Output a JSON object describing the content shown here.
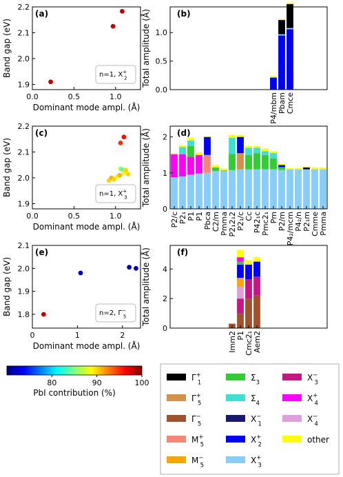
{
  "legend_order": [
    "G1p",
    "G5p",
    "G5m",
    "M5p",
    "M5m",
    "S3",
    "S4",
    "X1m",
    "X2p",
    "X3p",
    "X3m",
    "X4p",
    "X4m",
    "other"
  ],
  "modes": {
    "G1p": {
      "base": "Γ",
      "sup": "+",
      "sub": "1",
      "color": "#000000"
    },
    "G5p": {
      "base": "Γ",
      "sup": "+",
      "sub": "5",
      "color": "#d4914a"
    },
    "G5m": {
      "base": "Γ",
      "sup": "−",
      "sub": "5",
      "color": "#a0522d"
    },
    "M5p": {
      "base": "M",
      "sup": "+",
      "sub": "5",
      "color": "#f4877a"
    },
    "M5m": {
      "base": "M",
      "sup": "−",
      "sub": "5",
      "color": "#ffa500"
    },
    "S3": {
      "base": "Σ",
      "sup": "",
      "sub": "3",
      "color": "#32cd32"
    },
    "S4": {
      "base": "Σ",
      "sup": "",
      "sub": "4",
      "color": "#40e0d0"
    },
    "X1m": {
      "base": "X",
      "sup": "−",
      "sub": "1",
      "color": "#191970"
    },
    "X2p": {
      "base": "X",
      "sup": "+",
      "sub": "2",
      "color": "#0000ff"
    },
    "X3p": {
      "base": "X",
      "sup": "+",
      "sub": "3",
      "color": "#87cefa"
    },
    "X3m": {
      "base": "X",
      "sup": "−",
      "sub": "3",
      "color": "#c71585"
    },
    "X4p": {
      "base": "X",
      "sup": "+",
      "sub": "4",
      "color": "#ff00ff"
    },
    "X4m": {
      "base": "X",
      "sup": "−",
      "sub": "4",
      "color": "#dda0dd"
    },
    "other": {
      "base": "other",
      "sup": "",
      "sub": "",
      "color": "#ffff00"
    }
  },
  "colorbar": {
    "label": "PbI contribution (%)",
    "min": 70,
    "max": 100,
    "ticks": [
      80,
      90,
      100
    ],
    "colormap": [
      "#00007f",
      "#0000ff",
      "#007fff",
      "#00ffff",
      "#7fff7f",
      "#ffff00",
      "#ff7f00",
      "#ff0000",
      "#7f0000"
    ]
  },
  "chart_data": [
    {
      "panel": "(a)",
      "type": "scatter",
      "xlabel": "Dominant mode ampl. (Å)",
      "ylabel": "Band gap (eV)",
      "xlim": [
        0,
        1.3
      ],
      "ylim": [
        1.88,
        2.2
      ],
      "xticks": [
        0.0,
        0.5,
        1.0
      ],
      "yticks": [
        1.9,
        2.0,
        2.1,
        2.2
      ],
      "annotation": {
        "text": "n=1, X",
        "sup": "+",
        "sub": "2"
      },
      "points": [
        {
          "x": 0.22,
          "y": 1.91,
          "pbi": 98
        },
        {
          "x": 0.97,
          "y": 2.125,
          "pbi": 98
        },
        {
          "x": 1.08,
          "y": 2.183,
          "pbi": 98
        }
      ]
    },
    {
      "panel": "(b)",
      "type": "bar",
      "stacked": true,
      "ylabel": "Total amplitude (Å)",
      "ylim": [
        0,
        1.45
      ],
      "yticks": [
        0.0,
        0.5,
        1.0
      ],
      "slots": 19,
      "first_slot": 12,
      "categories": [
        "P4/mbm",
        "Pbam",
        "Cmce"
      ],
      "bars": [
        [
          {
            "mode": "X2p",
            "value": 0.21
          },
          {
            "mode": "X3p",
            "value": 0.01
          },
          {
            "mode": "other",
            "value": 0.02
          }
        ],
        [
          {
            "mode": "X2p",
            "value": 0.95
          },
          {
            "mode": "X3p",
            "value": 0.02
          },
          {
            "mode": "G1p",
            "value": 0.25
          },
          {
            "mode": "other",
            "value": 0.02
          }
        ],
        [
          {
            "mode": "X2p",
            "value": 1.06
          },
          {
            "mode": "X3p",
            "value": 0.02
          },
          {
            "mode": "G1p",
            "value": 0.42
          },
          {
            "mode": "other",
            "value": 0.02
          }
        ]
      ]
    },
    {
      "panel": "(c)",
      "type": "scatter",
      "xlabel": "Dominant mode ampl. (Å)",
      "ylabel": "Band gap (eV)",
      "xlim": [
        0,
        1.3
      ],
      "ylim": [
        1.88,
        2.2
      ],
      "xticks": [
        0.0,
        0.5,
        1.0
      ],
      "yticks": [
        1.9,
        2.0,
        2.1,
        2.2
      ],
      "annotation": {
        "text": "n=1, X",
        "sup": "+",
        "sub": "3"
      },
      "points": [
        {
          "x": 0.92,
          "y": 1.99,
          "pbi": 90
        },
        {
          "x": 0.95,
          "y": 2.0,
          "pbi": 91
        },
        {
          "x": 0.98,
          "y": 1.995,
          "pbi": 90
        },
        {
          "x": 1.02,
          "y": 2.005,
          "pbi": 89
        },
        {
          "x": 1.05,
          "y": 2.01,
          "pbi": 91
        },
        {
          "x": 1.06,
          "y": 2.035,
          "pbi": 86
        },
        {
          "x": 1.08,
          "y": 2.032,
          "pbi": 84
        },
        {
          "x": 1.1,
          "y": 2.02,
          "pbi": 89
        },
        {
          "x": 1.12,
          "y": 2.03,
          "pbi": 90
        },
        {
          "x": 1.15,
          "y": 2.015,
          "pbi": 90
        },
        {
          "x": 1.06,
          "y": 2.135,
          "pbi": 95
        },
        {
          "x": 1.1,
          "y": 2.158,
          "pbi": 96
        }
      ]
    },
    {
      "panel": "(d)",
      "type": "bar",
      "stacked": true,
      "ylabel": "Total amplitude (Å)",
      "ylim": [
        0,
        2.3
      ],
      "yticks": [
        0,
        1,
        2
      ],
      "slots": 19,
      "first_slot": 0,
      "categories": [
        "P2/c",
        "P2₁",
        "P1",
        "P1",
        "Pbca",
        "C2/m",
        "Pmma",
        "P2₁2₁2",
        "P2₁/c",
        "Cc",
        "P42₁c",
        "Pmc2₁",
        "Pm",
        "P2/m",
        "P4₂/mcm",
        "P4₂/n",
        "P2₁m",
        "Cmme",
        "Pmma"
      ],
      "bars": [
        [
          {
            "mode": "X3p",
            "value": 0.88
          },
          {
            "mode": "X4p",
            "value": 0.64
          },
          {
            "mode": "other",
            "value": 0.02
          }
        ],
        [
          {
            "mode": "X3p",
            "value": 0.9
          },
          {
            "mode": "X4p",
            "value": 0.62
          },
          {
            "mode": "S4",
            "value": 0.2
          },
          {
            "mode": "other",
            "value": 0.05
          }
        ],
        [
          {
            "mode": "X3p",
            "value": 0.95
          },
          {
            "mode": "X4p",
            "value": 0.5
          },
          {
            "mode": "S3",
            "value": 0.3
          },
          {
            "mode": "S4",
            "value": 0.15
          },
          {
            "mode": "other",
            "value": 0.08
          }
        ],
        [
          {
            "mode": "X3p",
            "value": 0.98
          },
          {
            "mode": "X4p",
            "value": 0.52
          },
          {
            "mode": "other",
            "value": 0.07
          }
        ],
        [
          {
            "mode": "X3p",
            "value": 1.0
          },
          {
            "mode": "M5p",
            "value": 0.5
          },
          {
            "mode": "X2p",
            "value": 0.5
          },
          {
            "mode": "other",
            "value": 0.02
          }
        ],
        [
          {
            "mode": "X3p",
            "value": 1.05
          },
          {
            "mode": "S3",
            "value": 0.1
          },
          {
            "mode": "other",
            "value": 0.07
          }
        ],
        [
          {
            "mode": "X3p",
            "value": 1.05
          },
          {
            "mode": "S3",
            "value": 0.02
          },
          {
            "mode": "other",
            "value": 0.05
          }
        ],
        [
          {
            "mode": "X3p",
            "value": 1.08
          },
          {
            "mode": "S3",
            "value": 0.45
          },
          {
            "mode": "S4",
            "value": 0.45
          },
          {
            "mode": "other",
            "value": 0.08
          }
        ],
        [
          {
            "mode": "X3p",
            "value": 1.1
          },
          {
            "mode": "G5p",
            "value": 0.45
          },
          {
            "mode": "X2p",
            "value": 0.45
          },
          {
            "mode": "other",
            "value": 0.05
          }
        ],
        [
          {
            "mode": "X3p",
            "value": 1.1
          },
          {
            "mode": "S3",
            "value": 0.4
          },
          {
            "mode": "S4",
            "value": 0.2
          },
          {
            "mode": "other",
            "value": 0.05
          }
        ],
        [
          {
            "mode": "X3p",
            "value": 1.1
          },
          {
            "mode": "S3",
            "value": 0.45
          },
          {
            "mode": "S4",
            "value": 0.15
          },
          {
            "mode": "other",
            "value": 0.05
          }
        ],
        [
          {
            "mode": "X3p",
            "value": 1.1
          },
          {
            "mode": "S3",
            "value": 0.4
          },
          {
            "mode": "S4",
            "value": 0.1
          },
          {
            "mode": "other",
            "value": 0.08
          }
        ],
        [
          {
            "mode": "X3p",
            "value": 1.1
          },
          {
            "mode": "S3",
            "value": 0.3
          },
          {
            "mode": "S4",
            "value": 0.15
          },
          {
            "mode": "other",
            "value": 0.05
          }
        ],
        [
          {
            "mode": "X3p",
            "value": 1.08
          },
          {
            "mode": "S3",
            "value": 0.08
          },
          {
            "mode": "X2p",
            "value": 0.06
          },
          {
            "mode": "other",
            "value": 0.03
          }
        ],
        [
          {
            "mode": "X3p",
            "value": 1.1
          },
          {
            "mode": "other",
            "value": 0.03
          }
        ],
        [
          {
            "mode": "X3p",
            "value": 1.1
          },
          {
            "mode": "other",
            "value": 0.03
          }
        ],
        [
          {
            "mode": "X3p",
            "value": 1.1
          },
          {
            "mode": "G1p",
            "value": 0.05
          },
          {
            "mode": "other",
            "value": 0.03
          }
        ],
        [
          {
            "mode": "X3p",
            "value": 1.1
          },
          {
            "mode": "other",
            "value": 0.05
          }
        ],
        [
          {
            "mode": "X3p",
            "value": 1.1
          },
          {
            "mode": "other",
            "value": 0.05
          }
        ]
      ]
    },
    {
      "panel": "(e)",
      "type": "scatter",
      "xlabel": "Dominant mode ampl. (Å)",
      "ylabel": "Band gap (eV)",
      "xlim": [
        0,
        2.4
      ],
      "ylim": [
        1.74,
        2.1
      ],
      "xticks": [
        0,
        1,
        2
      ],
      "yticks": [
        1.8,
        1.9,
        2.0,
        2.1
      ],
      "annotation": {
        "text": "n=2, Γ",
        "sup": "−",
        "sub": "5"
      },
      "points": [
        {
          "x": 0.25,
          "y": 1.8,
          "pbi": 98
        },
        {
          "x": 1.07,
          "y": 1.98,
          "pbi": 72
        },
        {
          "x": 2.15,
          "y": 2.005,
          "pbi": 72
        },
        {
          "x": 2.3,
          "y": 2.0,
          "pbi": 72
        }
      ]
    },
    {
      "panel": "(f)",
      "type": "bar",
      "stacked": true,
      "ylabel": "Total amplitude (Å)",
      "ylim": [
        0,
        5.6
      ],
      "yticks": [
        0,
        2,
        4
      ],
      "slots": 19,
      "first_slot": 7,
      "categories": [
        "Imm2",
        "P1",
        "Cmc2₁",
        "Aem2"
      ],
      "bars": [
        [
          {
            "mode": "G5m",
            "value": 0.3
          }
        ],
        [
          {
            "mode": "G5m",
            "value": 1.0
          },
          {
            "mode": "X3m",
            "value": 1.0
          },
          {
            "mode": "X4m",
            "value": 0.8
          },
          {
            "mode": "M5m",
            "value": 0.6
          },
          {
            "mode": "X2p",
            "value": 0.9
          },
          {
            "mode": "S3",
            "value": 0.2
          },
          {
            "mode": "X4p",
            "value": 0.3
          },
          {
            "mode": "other",
            "value": 0.5
          }
        ],
        [
          {
            "mode": "G5m",
            "value": 2.0
          },
          {
            "mode": "X3m",
            "value": 1.3
          },
          {
            "mode": "X2p",
            "value": 1.0
          },
          {
            "mode": "other",
            "value": 0.3
          }
        ],
        [
          {
            "mode": "G5m",
            "value": 2.2
          },
          {
            "mode": "X3m",
            "value": 1.3
          },
          {
            "mode": "X2p",
            "value": 1.0
          },
          {
            "mode": "other",
            "value": 0.3
          }
        ]
      ]
    }
  ]
}
